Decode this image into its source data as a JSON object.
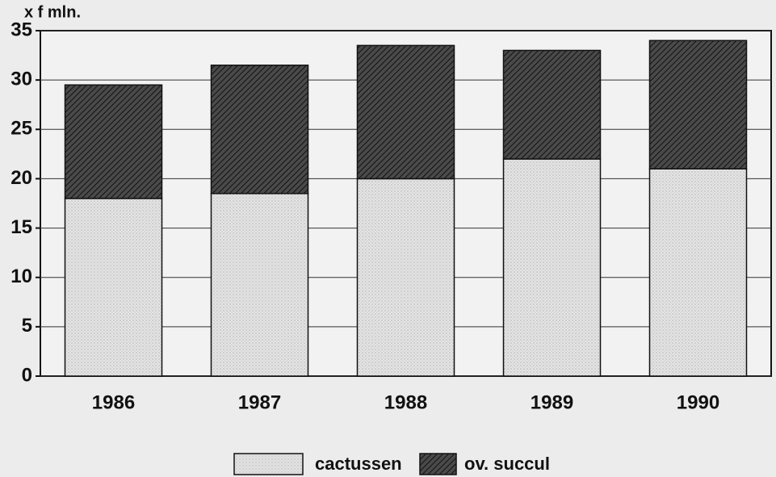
{
  "chart_data": {
    "type": "stacked_bar",
    "y_label": "x f mln.",
    "categories": [
      "1986",
      "1987",
      "1988",
      "1989",
      "1990"
    ],
    "series": [
      {
        "name": "cactussen",
        "color": "#e4e4e4",
        "values": [
          18,
          18.5,
          20,
          22,
          21
        ]
      },
      {
        "name": "ov. succul",
        "color": "#4a4a4a",
        "values": [
          11.5,
          13,
          13.5,
          11,
          13
        ]
      }
    ],
    "ylim": [
      0,
      35
    ],
    "yticks": [
      0,
      5,
      10,
      15,
      20,
      25,
      30,
      35
    ],
    "grid": true
  }
}
